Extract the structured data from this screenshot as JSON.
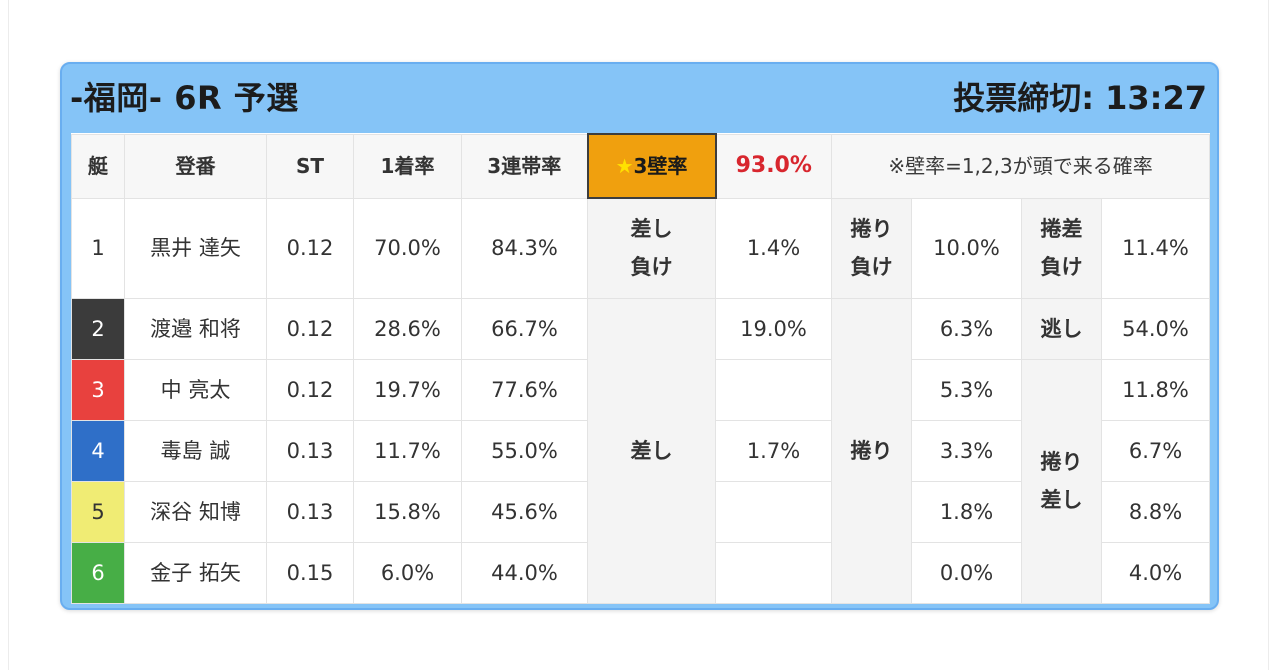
{
  "header": {
    "race_title": "-福岡- 6R 予選",
    "deadline": "投票締切: 13:27"
  },
  "table_head": {
    "boat": "艇",
    "reg": "登番",
    "st": "ST",
    "first_rate": "1着率",
    "trio_rate": "3連帯率",
    "wall_label_star": "★",
    "wall_label": "3壁率",
    "wall_value": "93.0%",
    "wall_note": "※壁率=1,2,3が頭で来る確率"
  },
  "groups": {
    "sashi_make": "差し負け",
    "makuri_make": "捲り負け",
    "makurisashi_make": "捲差負け",
    "nige": "逃し",
    "sashi": "差し",
    "makuri": "捲り",
    "makurisashi": "捲り差し"
  },
  "rows": [
    {
      "no": "1",
      "name": "黒井 達矢",
      "st": "0.12",
      "r1": "70.0%",
      "r3": "84.3%",
      "sashi": "1.4%",
      "makuri": "10.0%",
      "makurisashi": "11.4%"
    },
    {
      "no": "2",
      "name": "渡邉 和将",
      "st": "0.12",
      "r1": "28.6%",
      "r3": "66.7%",
      "sashi": "19.0%",
      "makuri": "6.3%",
      "makurisashi": "54.0%"
    },
    {
      "no": "3",
      "name": "中 亮太",
      "st": "0.12",
      "r1": "19.7%",
      "r3": "77.6%",
      "sashi": "",
      "makuri": "5.3%",
      "makurisashi": "11.8%"
    },
    {
      "no": "4",
      "name": "毒島 誠",
      "st": "0.13",
      "r1": "11.7%",
      "r3": "55.0%",
      "sashi": "1.7%",
      "makuri": "3.3%",
      "makurisashi": "6.7%"
    },
    {
      "no": "5",
      "name": "深谷 知博",
      "st": "0.13",
      "r1": "15.8%",
      "r3": "45.6%",
      "sashi": "",
      "makuri": "1.8%",
      "makurisashi": "8.8%"
    },
    {
      "no": "6",
      "name": "金子 拓矢",
      "st": "0.15",
      "r1": "6.0%",
      "r3": "44.0%",
      "sashi": "",
      "makuri": "0.0%",
      "makurisashi": "4.0%"
    }
  ],
  "colors": {
    "card_bg": "#85c4f7",
    "wall_highlight": "#f0a00e",
    "wall_value": "#d8262e",
    "boat_1": "#ffffff",
    "boat_2": "#3b3b3b",
    "boat_3": "#e8413e",
    "boat_4": "#2f6fc8",
    "boat_5": "#f0ec74",
    "boat_6": "#47ae46"
  }
}
